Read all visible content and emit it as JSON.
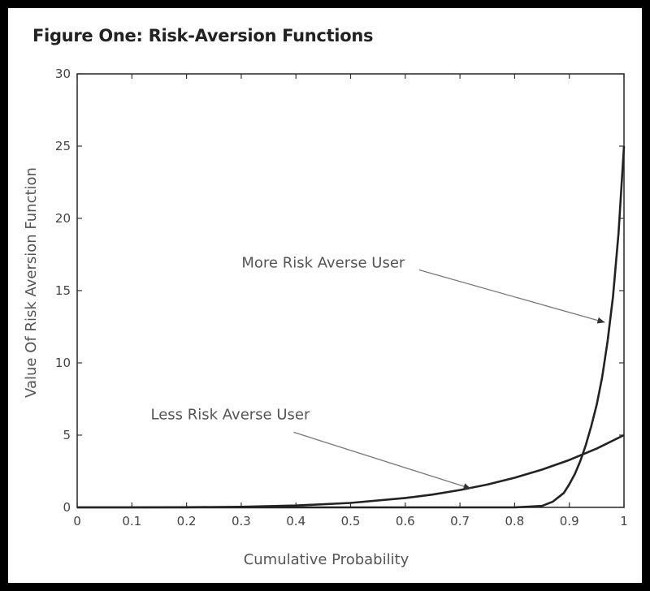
{
  "chart_data": {
    "type": "line",
    "title": "Figure One: Risk-Aversion Functions",
    "xlabel": "Cumulative Probability",
    "ylabel": "Value Of Risk Aversion Function",
    "xlim": [
      0,
      1
    ],
    "ylim": [
      0,
      30
    ],
    "x_ticks": [
      "0",
      "0.1",
      "0.2",
      "0.3",
      "0.4",
      "0.5",
      "0.6",
      "0.7",
      "0.8",
      "0.9",
      "1"
    ],
    "y_ticks": [
      "0",
      "5",
      "10",
      "15",
      "20",
      "25",
      "30"
    ],
    "grid": false,
    "series": [
      {
        "name": "Less Risk Averse User",
        "x": [
          0,
          0.1,
          0.2,
          0.3,
          0.4,
          0.5,
          0.6,
          0.65,
          0.7,
          0.75,
          0.8,
          0.85,
          0.9,
          0.95,
          1.0
        ],
        "y": [
          0,
          0,
          0.01,
          0.04,
          0.13,
          0.31,
          0.65,
          0.89,
          1.2,
          1.58,
          2.05,
          2.61,
          3.28,
          4.07,
          5.0
        ]
      },
      {
        "name": "More Risk Averse User",
        "x": [
          0,
          0.5,
          0.8,
          0.85,
          0.87,
          0.89,
          0.9,
          0.91,
          0.92,
          0.93,
          0.94,
          0.95,
          0.96,
          0.97,
          0.98,
          0.99,
          1.0
        ],
        "y": [
          0,
          0,
          0.0,
          0.1,
          0.4,
          1.0,
          1.6,
          2.3,
          3.2,
          4.3,
          5.6,
          7.1,
          9.0,
          11.5,
          14.6,
          19.0,
          25.0
        ]
      }
    ],
    "annotations": [
      {
        "text": "More Risk Averse User",
        "x": 0.45,
        "y": 16.6,
        "arrow_to": [
          0.965,
          12.8
        ]
      },
      {
        "text": "Less Risk Averse User",
        "x": 0.28,
        "y": 6.1,
        "arrow_to": [
          0.72,
          1.3
        ]
      }
    ]
  }
}
